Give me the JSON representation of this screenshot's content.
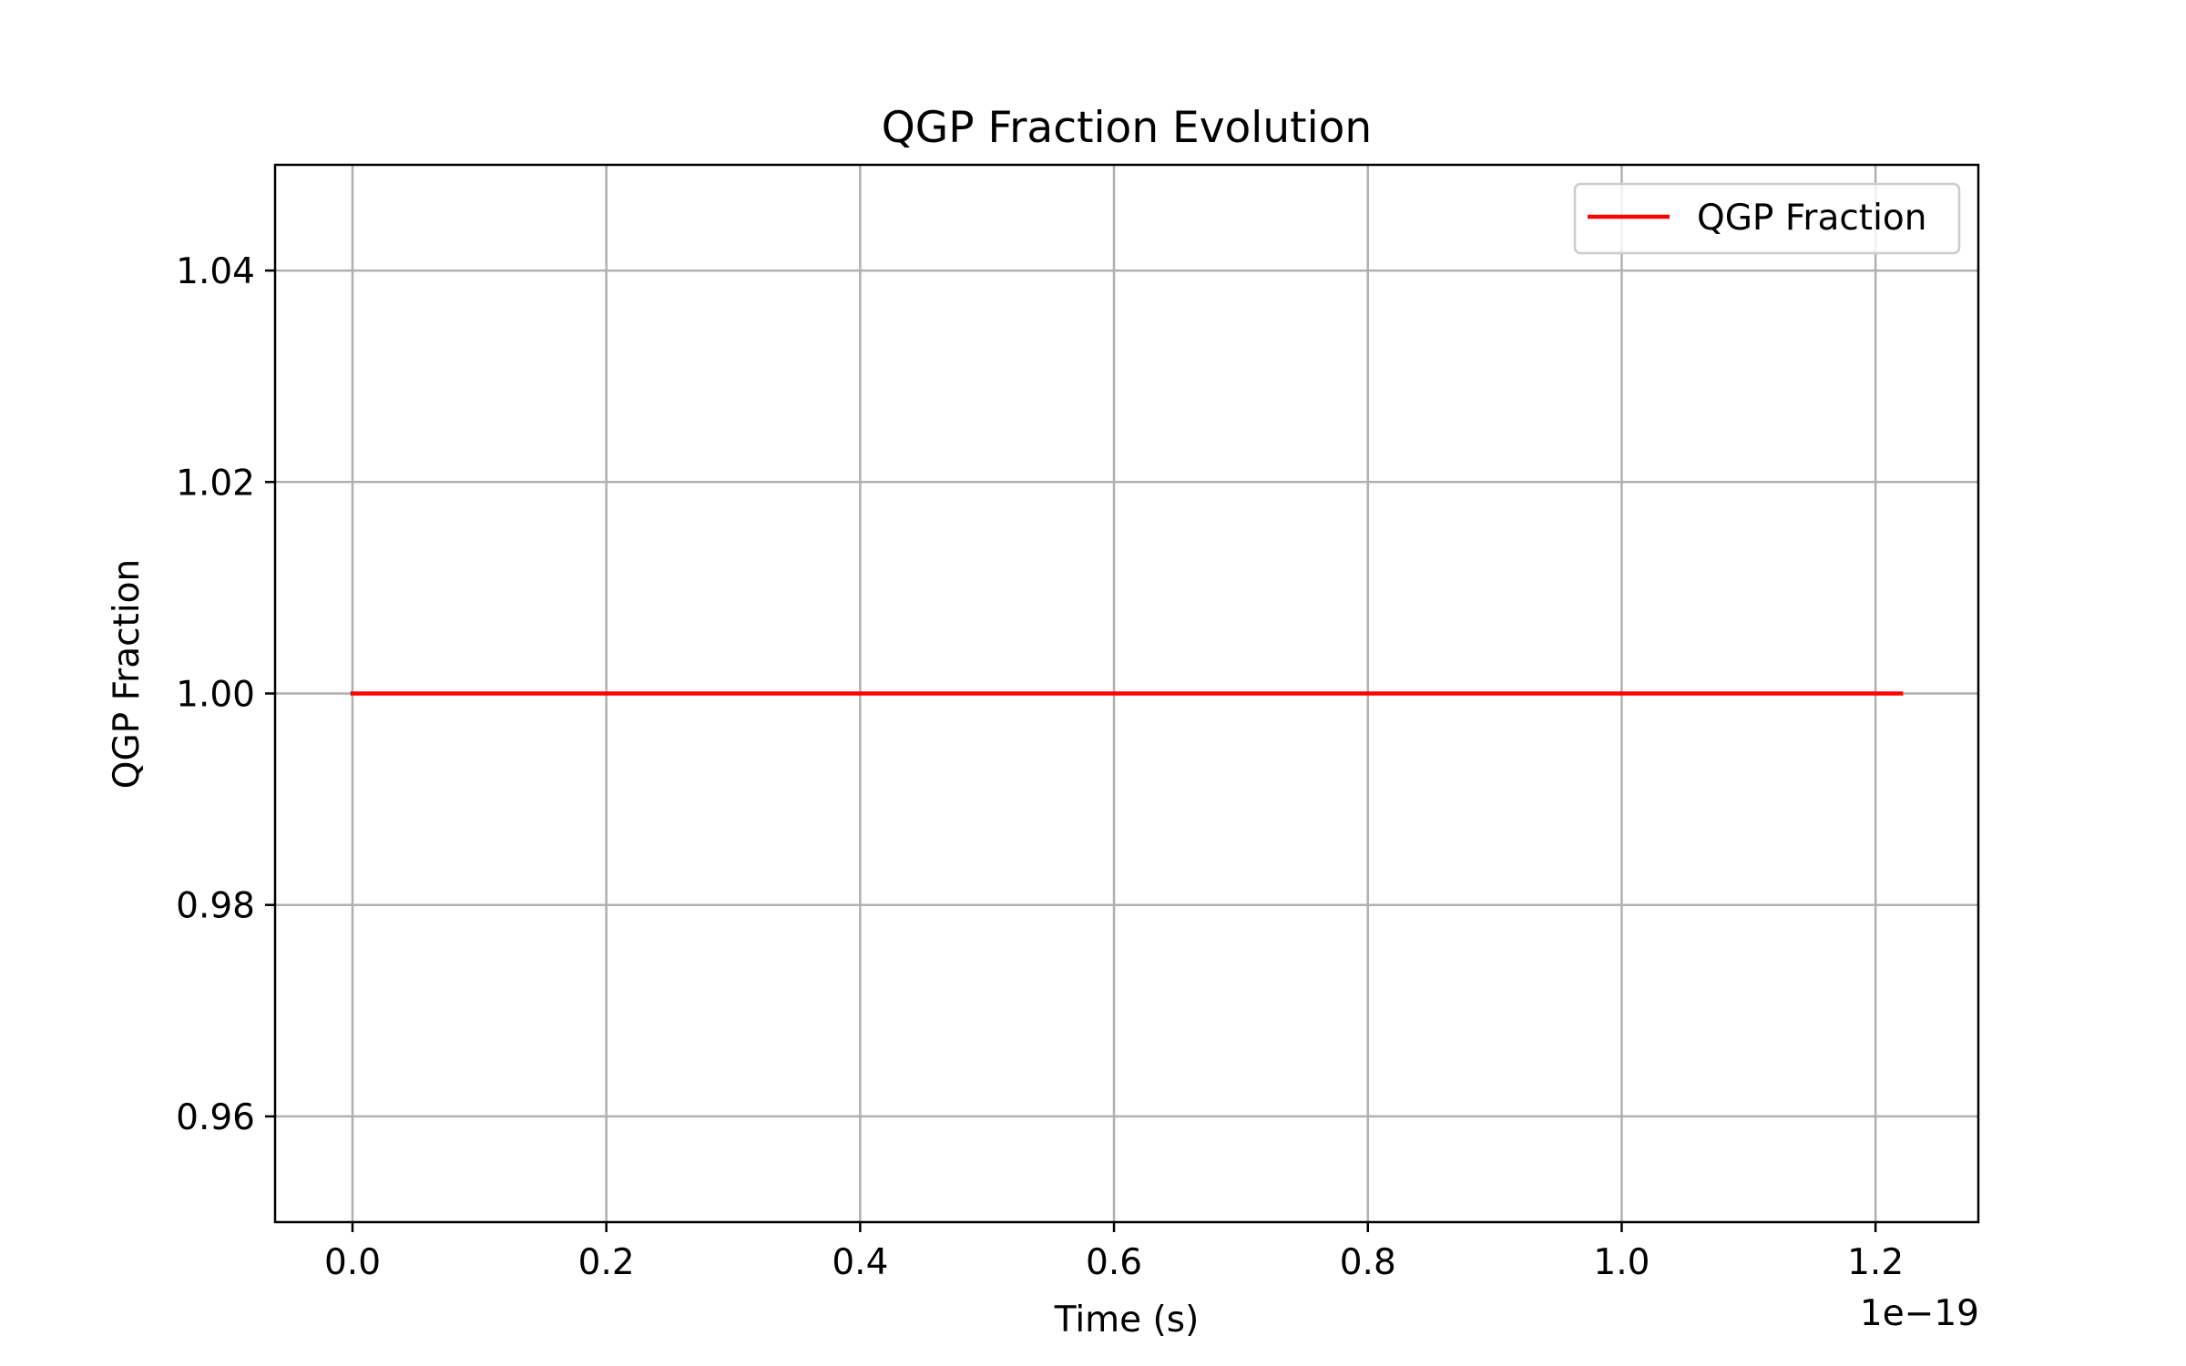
{
  "chart_data": {
    "type": "line",
    "title": "QGP Fraction Evolution",
    "xlabel": "Time (s)",
    "ylabel": "QGP Fraction",
    "x_offset_text": "1e−19",
    "xlim": [
      -0.061,
      1.281
    ],
    "ylim": [
      0.95,
      1.05
    ],
    "x_ticks": [
      0.0,
      0.2,
      0.4,
      0.6,
      0.8,
      1.0,
      1.2
    ],
    "x_tick_labels": [
      "0.0",
      "0.2",
      "0.4",
      "0.6",
      "0.8",
      "1.0",
      "1.2"
    ],
    "y_ticks": [
      0.96,
      0.98,
      1.0,
      1.02,
      1.04
    ],
    "y_tick_labels": [
      "0.96",
      "0.98",
      "1.00",
      "1.02",
      "1.04"
    ],
    "grid": true,
    "legend_position": "top-right",
    "series": [
      {
        "name": "QGP Fraction",
        "color": "#ff0000",
        "x": [
          0.0,
          1.22
        ],
        "y": [
          1.0,
          1.0
        ]
      }
    ]
  }
}
